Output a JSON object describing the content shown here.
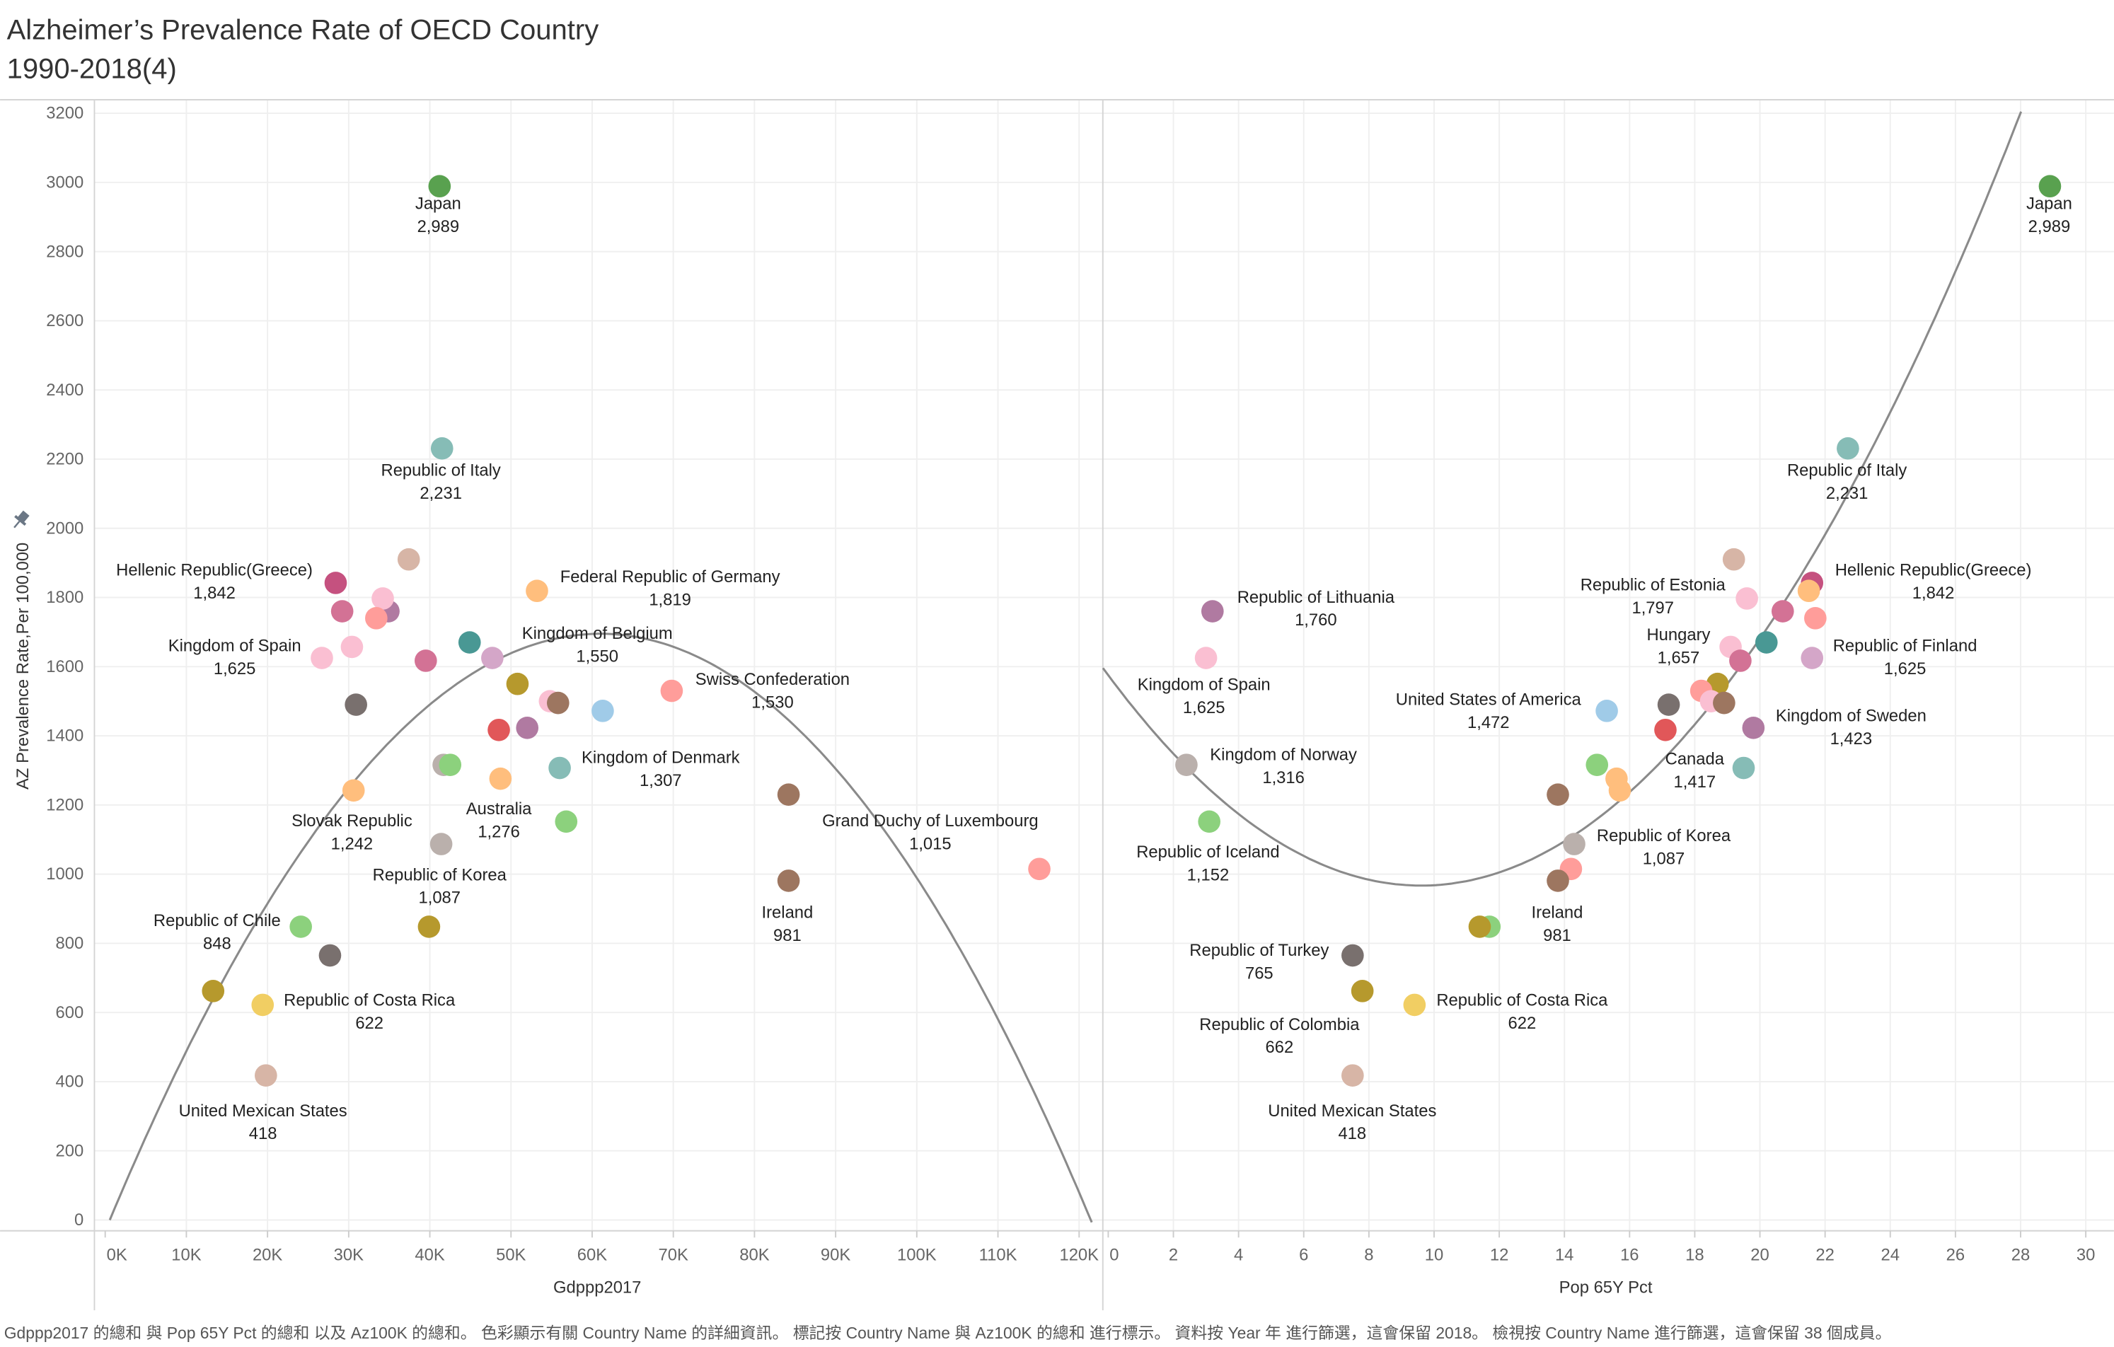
{
  "title_line1": "Alzheimer’s Prevalence Rate of OECD Country",
  "title_line2": "1990-2018(4)",
  "footer": "Gdppp2017 的總和 與 Pop 65Y Pct 的總和 以及 Az100K 的總和。 色彩顯示有關 Country Name 的詳細資訊。 標記按 Country Name 與 Az100K 的總和 進行標示。 資料按 Year 年 進行篩選，這會保留 2018。 檢視按 Country Name 進行篩選，這會保留 38 個成員。",
  "icons": {
    "pin": "pin-icon"
  },
  "chart_data": [
    {
      "type": "scatter",
      "xlabel": "Gdppp2017",
      "ylabel": "AZ Prevalence Rate,Per 100,000",
      "x_ticks": [
        "0K",
        "10K",
        "20K",
        "30K",
        "40K",
        "50K",
        "60K",
        "70K",
        "80K",
        "90K",
        "100K",
        "110K",
        "120K"
      ],
      "x_tick_values": [
        0,
        10,
        20,
        30,
        40,
        50,
        60,
        70,
        80,
        90,
        100,
        110,
        120
      ],
      "y_ticks": [
        "0",
        "200",
        "400",
        "600",
        "800",
        "1000",
        "1200",
        "1400",
        "1600",
        "1800",
        "2000",
        "2200",
        "2400",
        "2600",
        "2800",
        "3000",
        "3200"
      ],
      "y_tick_values": [
        0,
        200,
        400,
        600,
        800,
        1000,
        1200,
        1400,
        1600,
        1800,
        2000,
        2200,
        2400,
        2600,
        2800,
        3000,
        3200
      ],
      "xlim": [
        -1.3,
        122.8
      ],
      "ylim": [
        -31,
        3239
      ],
      "grid": true,
      "trend_line": "polynomial",
      "points": [
        {
          "name": "Japan",
          "x": 41.2,
          "y": 2989,
          "color": "#59a14f",
          "label": true
        },
        {
          "name": "Republic of Italy",
          "x": 41.5,
          "y": 2231,
          "color": "#86bcb6",
          "label": true
        },
        {
          "name": "Hellenic Republic(Greece)",
          "x": 28.4,
          "y": 1842,
          "color": "#c5517f",
          "label": true
        },
        {
          "name": "Federal Republic of Germany",
          "x": 53.2,
          "y": 1819,
          "color": "#ffbe7d",
          "label": true
        },
        {
          "name": "Kingdom of Spain",
          "x": 26.7,
          "y": 1625,
          "color": "#fabfd2",
          "label": true
        },
        {
          "name": "Kingdom of Belgium",
          "x": 50.8,
          "y": 1550,
          "color": "#b6992d",
          "label": true
        },
        {
          "name": "Swiss Confederation",
          "x": 69.8,
          "y": 1530,
          "color": "#ff9d9a",
          "label": true
        },
        {
          "name": "Kingdom of Denmark",
          "x": 56.0,
          "y": 1307,
          "color": "#86bcb6",
          "label": true
        },
        {
          "name": "Australia",
          "x": 48.7,
          "y": 1276,
          "color": "#ffbe7d",
          "label": true
        },
        {
          "name": "Slovak Republic",
          "x": 30.6,
          "y": 1242,
          "color": "#ffbe7d",
          "label": true
        },
        {
          "name": "Republic of Korea",
          "x": 41.4,
          "y": 1087,
          "color": "#bab0ac",
          "label": true
        },
        {
          "name": "Grand Duchy of Luxembourg",
          "x": 115.1,
          "y": 1015,
          "color": "#ff9d9a",
          "label": true
        },
        {
          "name": "Ireland",
          "x": 84.2,
          "y": 981,
          "color": "#9d7660",
          "label": true
        },
        {
          "name": "Republic of Chile",
          "x": 24.1,
          "y": 848,
          "color": "#8cd17d",
          "label": true
        },
        {
          "name": "Republic of Costa Rica",
          "x": 19.4,
          "y": 622,
          "color": "#f1ce63",
          "label": true
        },
        {
          "name": "United Mexican States",
          "x": 19.8,
          "y": 418,
          "color": "#d7b5a6",
          "label": true
        },
        {
          "name": "",
          "x": 34.9,
          "y": 1760,
          "color": "#b07aa1",
          "label": false
        },
        {
          "name": "",
          "x": 41.7,
          "y": 1316,
          "color": "#bab0ac",
          "label": false
        },
        {
          "name": "",
          "x": 56.8,
          "y": 1152,
          "color": "#8cd17d",
          "label": false
        },
        {
          "name": "",
          "x": 34.2,
          "y": 1797,
          "color": "#fabfd2",
          "label": false
        },
        {
          "name": "",
          "x": 30.4,
          "y": 1657,
          "color": "#fabfd2",
          "label": false
        },
        {
          "name": "",
          "x": 47.7,
          "y": 1625,
          "color": "#d4a6c8",
          "label": false
        },
        {
          "name": "",
          "x": 61.3,
          "y": 1472,
          "color": "#a0cbe8",
          "label": false
        },
        {
          "name": "",
          "x": 52.0,
          "y": 1423,
          "color": "#b07aa1",
          "label": false
        },
        {
          "name": "",
          "x": 48.5,
          "y": 1417,
          "color": "#e15759",
          "label": false
        },
        {
          "name": "",
          "x": 27.7,
          "y": 765,
          "color": "#79706e",
          "label": false
        },
        {
          "name": "",
          "x": 13.3,
          "y": 662,
          "color": "#b6992d",
          "label": false
        },
        {
          "name": "",
          "x": 37.4,
          "y": 1910,
          "color": "#d7b5a6",
          "label": false
        },
        {
          "name": "",
          "x": 29.2,
          "y": 1760,
          "color": "#d37295",
          "label": false
        },
        {
          "name": "",
          "x": 33.4,
          "y": 1740,
          "color": "#ff9d9a",
          "label": false
        },
        {
          "name": "",
          "x": 44.9,
          "y": 1670,
          "color": "#499894",
          "label": false
        },
        {
          "name": "",
          "x": 39.5,
          "y": 1617,
          "color": "#d37295",
          "label": false
        },
        {
          "name": "",
          "x": 30.9,
          "y": 1490,
          "color": "#79706e",
          "label": false
        },
        {
          "name": "",
          "x": 54.8,
          "y": 1500,
          "color": "#fabfd2",
          "label": false
        },
        {
          "name": "",
          "x": 55.8,
          "y": 1495,
          "color": "#9d7660",
          "label": false
        },
        {
          "name": "",
          "x": 84.2,
          "y": 1230,
          "color": "#9d7660",
          "label": false
        },
        {
          "name": "",
          "x": 39.9,
          "y": 848,
          "color": "#b6992d",
          "label": false
        },
        {
          "name": "",
          "x": 42.5,
          "y": 1316,
          "color": "#8cd17d",
          "label": false
        }
      ]
    },
    {
      "type": "scatter",
      "xlabel": "Pop 65Y Pct",
      "ylabel": "",
      "x_ticks": [
        "0",
        "2",
        "4",
        "6",
        "8",
        "10",
        "12",
        "14",
        "16",
        "18",
        "20",
        "22",
        "24",
        "26",
        "28",
        "30"
      ],
      "x_tick_values": [
        0,
        2,
        4,
        6,
        8,
        10,
        12,
        14,
        16,
        18,
        20,
        22,
        24,
        26,
        28,
        30
      ],
      "xlim": [
        -0.16,
        30.8
      ],
      "ylim": [
        -31,
        3239
      ],
      "grid": true,
      "trend_line": "polynomial",
      "points": [
        {
          "name": "Japan",
          "x": 28.9,
          "y": 2989,
          "color": "#59a14f",
          "label": true
        },
        {
          "name": "Republic of Italy",
          "x": 22.7,
          "y": 2231,
          "color": "#86bcb6",
          "label": true
        },
        {
          "name": "Hellenic Republic(Greece)",
          "x": 21.6,
          "y": 1842,
          "color": "#c5517f",
          "label": true
        },
        {
          "name": "",
          "x": 21.5,
          "y": 1819,
          "color": "#ffbe7d",
          "label": false
        },
        {
          "name": "Kingdom of Spain",
          "x": 3.0,
          "y": 1625,
          "color": "#fabfd2",
          "label": true
        },
        {
          "name": "",
          "x": 18.7,
          "y": 1550,
          "color": "#b6992d",
          "label": false
        },
        {
          "name": "",
          "x": 18.2,
          "y": 1530,
          "color": "#ff9d9a",
          "label": false
        },
        {
          "name": "",
          "x": 19.5,
          "y": 1307,
          "color": "#86bcb6",
          "label": false
        },
        {
          "name": "",
          "x": 15.6,
          "y": 1276,
          "color": "#ffbe7d",
          "label": false
        },
        {
          "name": "",
          "x": 15.7,
          "y": 1242,
          "color": "#ffbe7d",
          "label": false
        },
        {
          "name": "Republic of Korea",
          "x": 14.3,
          "y": 1087,
          "color": "#bab0ac",
          "label": true
        },
        {
          "name": "",
          "x": 14.2,
          "y": 1015,
          "color": "#ff9d9a",
          "label": false
        },
        {
          "name": "Ireland",
          "x": 13.8,
          "y": 981,
          "color": "#9d7660",
          "label": true
        },
        {
          "name": "",
          "x": 11.7,
          "y": 848,
          "color": "#8cd17d",
          "label": false
        },
        {
          "name": "Republic of Costa Rica",
          "x": 9.4,
          "y": 622,
          "color": "#f1ce63",
          "label": true
        },
        {
          "name": "United Mexican States",
          "x": 7.5,
          "y": 418,
          "color": "#d7b5a6",
          "label": true
        },
        {
          "name": "Republic of Lithuania",
          "x": 3.2,
          "y": 1760,
          "color": "#b07aa1",
          "label": true
        },
        {
          "name": "Kingdom of Norway",
          "x": 2.4,
          "y": 1316,
          "color": "#bab0ac",
          "label": true
        },
        {
          "name": "Republic of Iceland",
          "x": 3.1,
          "y": 1152,
          "color": "#8cd17d",
          "label": true
        },
        {
          "name": "Republic of Estonia",
          "x": 19.6,
          "y": 1797,
          "color": "#fabfd2",
          "label": true
        },
        {
          "name": "Hungary",
          "x": 19.1,
          "y": 1657,
          "color": "#fabfd2",
          "label": true
        },
        {
          "name": "Republic of Finland",
          "x": 21.6,
          "y": 1625,
          "color": "#d4a6c8",
          "label": true
        },
        {
          "name": "United States of America",
          "x": 15.3,
          "y": 1472,
          "color": "#a0cbe8",
          "label": true
        },
        {
          "name": "Kingdom of Sweden",
          "x": 19.8,
          "y": 1423,
          "color": "#b07aa1",
          "label": true
        },
        {
          "name": "Canada",
          "x": 17.1,
          "y": 1417,
          "color": "#e15759",
          "label": true
        },
        {
          "name": "Republic of Turkey",
          "x": 7.5,
          "y": 765,
          "color": "#79706e",
          "label": true
        },
        {
          "name": "Republic of Colombia",
          "x": 7.8,
          "y": 662,
          "color": "#b6992d",
          "label": true
        },
        {
          "name": "",
          "x": 19.2,
          "y": 1910,
          "color": "#d7b5a6",
          "label": false
        },
        {
          "name": "",
          "x": 20.7,
          "y": 1760,
          "color": "#d37295",
          "label": false
        },
        {
          "name": "",
          "x": 21.7,
          "y": 1740,
          "color": "#ff9d9a",
          "label": false
        },
        {
          "name": "",
          "x": 20.2,
          "y": 1670,
          "color": "#499894",
          "label": false
        },
        {
          "name": "",
          "x": 19.4,
          "y": 1617,
          "color": "#d37295",
          "label": false
        },
        {
          "name": "",
          "x": 17.2,
          "y": 1490,
          "color": "#79706e",
          "label": false
        },
        {
          "name": "",
          "x": 18.5,
          "y": 1500,
          "color": "#fabfd2",
          "label": false
        },
        {
          "name": "",
          "x": 18.9,
          "y": 1495,
          "color": "#9d7660",
          "label": false
        },
        {
          "name": "",
          "x": 13.8,
          "y": 1230,
          "color": "#9d7660",
          "label": false
        },
        {
          "name": "",
          "x": 11.4,
          "y": 848,
          "color": "#b6992d",
          "label": false
        },
        {
          "name": "",
          "x": 15.0,
          "y": 1316,
          "color": "#8cd17d",
          "label": false
        }
      ]
    }
  ]
}
